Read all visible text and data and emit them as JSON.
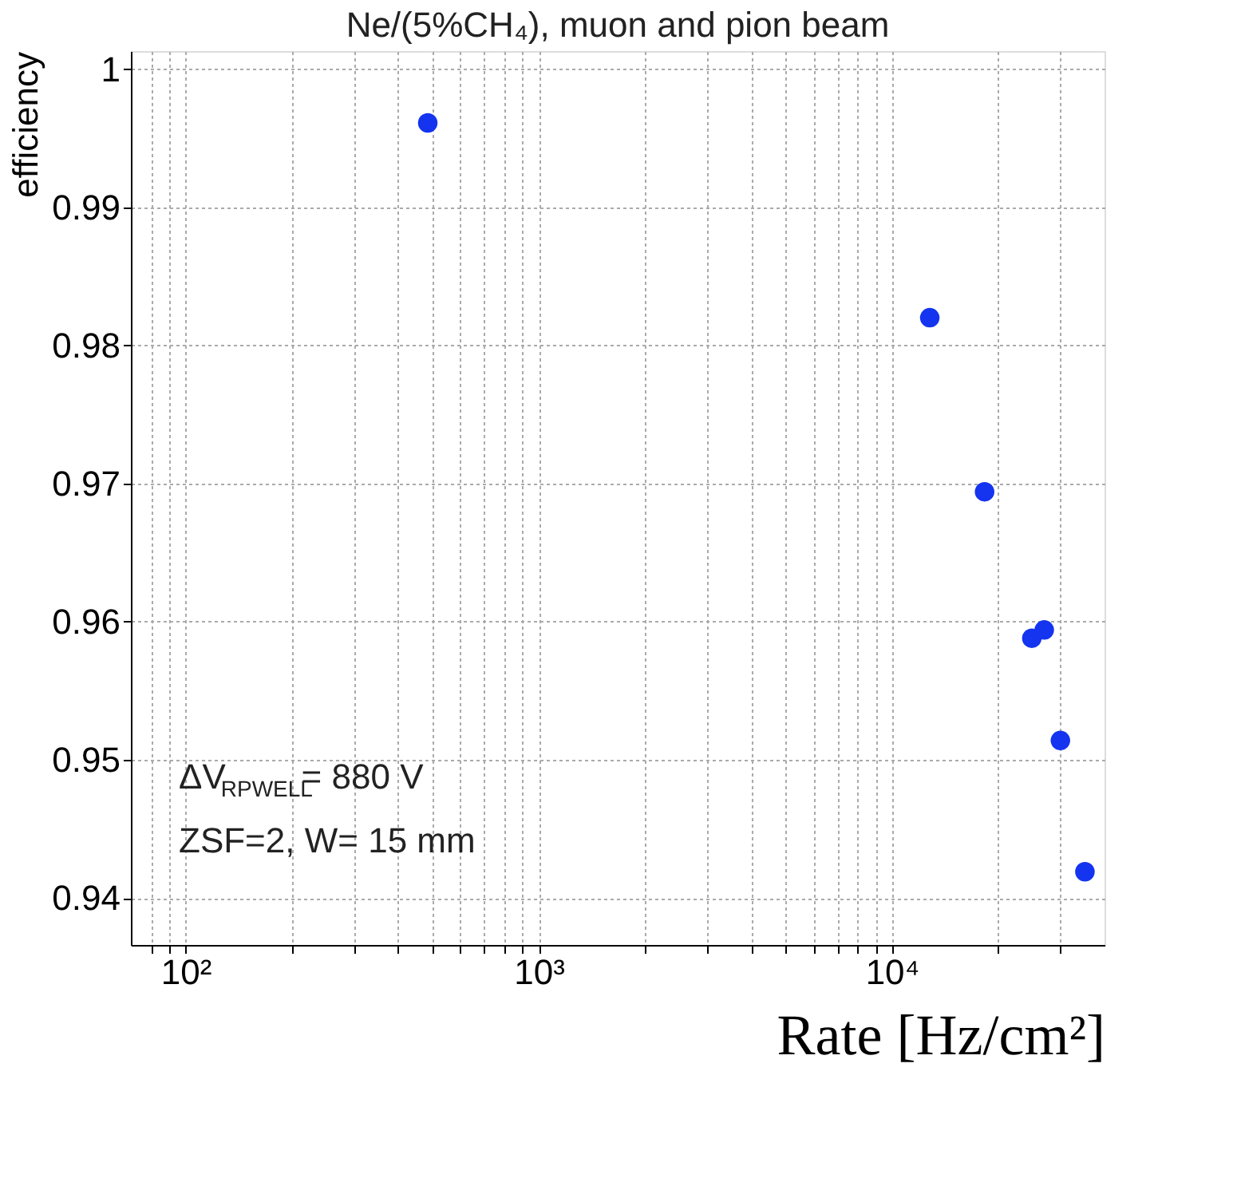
{
  "chart_data": {
    "type": "scatter",
    "title": "Ne/(5%CH₄), muon and pion beam",
    "xlabel": "Rate [Hz/cm²]",
    "ylabel": "efficiency",
    "x": [
      485,
      12800,
      18300,
      24900,
      27000,
      30000,
      35200
    ],
    "series": [
      {
        "color": "#1434f0",
        "values": [
          0.9961,
          0.982,
          0.9694,
          0.9588,
          0.9594,
          0.9514,
          0.9419
        ]
      }
    ],
    "marker": "circle",
    "log": "x",
    "grid": true,
    "xlim": [
      70,
      40000
    ],
    "ylim": [
      0.9366,
      1.0013
    ],
    "xticks": [
      {
        "value": 80,
        "label": null
      },
      {
        "value": 90,
        "label": null
      },
      {
        "value": 100,
        "label": "10²"
      },
      {
        "value": 200,
        "label": null
      },
      {
        "value": 300,
        "label": null
      },
      {
        "value": 400,
        "label": null
      },
      {
        "value": 500,
        "label": null
      },
      {
        "value": 600,
        "label": null
      },
      {
        "value": 700,
        "label": null
      },
      {
        "value": 800,
        "label": null
      },
      {
        "value": 900,
        "label": null
      },
      {
        "value": 1000,
        "label": "10³"
      },
      {
        "value": 2000,
        "label": null
      },
      {
        "value": 3000,
        "label": null
      },
      {
        "value": 4000,
        "label": null
      },
      {
        "value": 5000,
        "label": null
      },
      {
        "value": 6000,
        "label": null
      },
      {
        "value": 7000,
        "label": null
      },
      {
        "value": 8000,
        "label": null
      },
      {
        "value": 9000,
        "label": null
      },
      {
        "value": 10000,
        "label": "10⁴"
      },
      {
        "value": 20000,
        "label": null
      },
      {
        "value": 30000,
        "label": null
      }
    ],
    "yticks": [
      0.94,
      0.95,
      0.96,
      0.97,
      0.98,
      0.99,
      {
        "value": 1,
        "label": "1"
      }
    ],
    "annotations": [
      "ΔV$_{RPWELL}$= 880 V",
      "ZSF=2, W= 15 mm"
    ]
  }
}
